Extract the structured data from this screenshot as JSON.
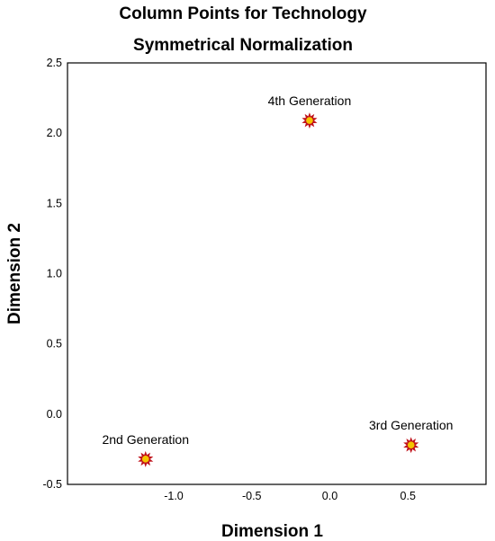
{
  "chart_data": {
    "type": "scatter",
    "title": "Column Points for Technology",
    "subtitle": "Symmetrical Normalization",
    "xlabel": "Dimension 1",
    "ylabel": "Dimension 2",
    "xlim": [
      -1.68,
      1.0
    ],
    "ylim": [
      -0.5,
      2.5
    ],
    "xticks": [
      -1.0,
      -0.5,
      0.0,
      0.5
    ],
    "xtick_labels": [
      "-1.0",
      "-0.5",
      "0.0",
      "0.5"
    ],
    "yticks": [
      2.5,
      2.0,
      1.5,
      1.0,
      0.5,
      0.0,
      -0.5
    ],
    "ytick_labels": [
      "2.5",
      "2.0",
      "1.5",
      "1.0",
      "0.5",
      "0.0",
      "-0.5"
    ],
    "grid": false,
    "marker_color": "#f5c400",
    "marker_edge_color": "#c0111a",
    "points": [
      {
        "label": "4th Generation",
        "x": -0.13,
        "y": 2.09
      },
      {
        "label": "3rd Generation",
        "x": 0.52,
        "y": -0.22
      },
      {
        "label": "2nd Generation",
        "x": -1.18,
        "y": -0.32
      }
    ]
  }
}
